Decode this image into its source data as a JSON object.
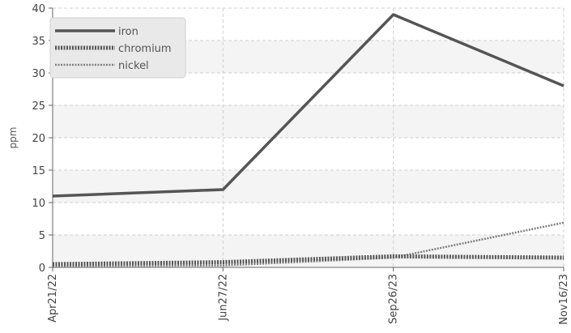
{
  "chart_data": {
    "type": "line",
    "title": "",
    "xlabel": "",
    "ylabel": "ppm",
    "categories": [
      "Apr21/22",
      "Jun27/22",
      "Sep26/23",
      "Nov16/23"
    ],
    "ylim": [
      0,
      40
    ],
    "yticks": [
      0,
      5,
      10,
      15,
      20,
      25,
      30,
      35,
      40
    ],
    "grid": true,
    "legend_position": "top-left",
    "series": [
      {
        "name": "iron",
        "values": [
          11,
          12,
          39,
          28
        ],
        "color": "#555555",
        "style": "solid"
      },
      {
        "name": "chromium",
        "values": [
          0.5,
          0.8,
          1.7,
          1.5
        ],
        "color": "#555555",
        "style": "dotted-thick"
      },
      {
        "name": "nickel",
        "values": [
          0.2,
          0.3,
          1.5,
          6.9
        ],
        "color": "#808080",
        "style": "dotted-thin"
      }
    ]
  }
}
